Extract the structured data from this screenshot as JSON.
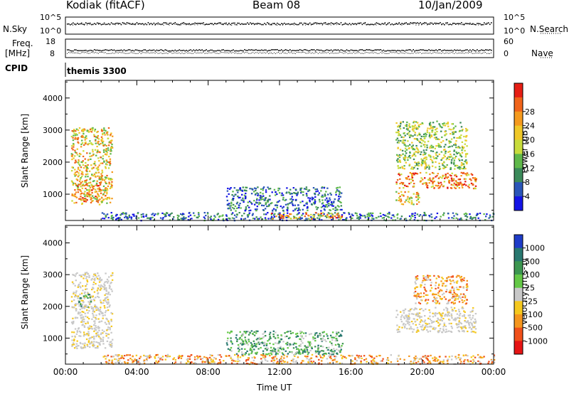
{
  "header": {
    "station": "Kodiak (fitACF)",
    "beam": "Beam 08",
    "date": "10/Jan/2009"
  },
  "noise_panel": {
    "left_label": "N.Sky",
    "right_label": "N.Search",
    "left_ticks": [
      "10^5",
      "10^0"
    ],
    "right_ticks": [
      "10^5",
      "10^0"
    ]
  },
  "freq_panel": {
    "left_label_top": "Freq.",
    "left_label_bottom": "[MHz]",
    "right_label": "Nave",
    "left_ticks": [
      "18",
      "8"
    ],
    "right_ticks": [
      "60",
      "0"
    ]
  },
  "cpid": {
    "label": "CPID",
    "program": "themis 3300"
  },
  "chart_data": [
    {
      "type": "heatmap",
      "name": "power",
      "ylabel": "Slant Range [km]",
      "ylim": [
        180,
        4550
      ],
      "xlim_hours": [
        0,
        24
      ],
      "y_ticks": [
        "1000",
        "2000",
        "3000",
        "4000"
      ],
      "colorbar": {
        "label": "Power [dB]",
        "ticks": [
          "4",
          "8",
          "12",
          "16",
          "20",
          "24",
          "28"
        ],
        "colors": [
          "#1414e6",
          "#2a55b8",
          "#3b8a5a",
          "#5fb84a",
          "#c8dc3c",
          "#f0c828",
          "#f59a1e",
          "#f0641a",
          "#e61e14"
        ]
      },
      "regions": [
        {
          "t": [
            0.3,
            2.6
          ],
          "r": [
            700,
            3100
          ],
          "level": "high"
        },
        {
          "t": [
            0.6,
            2.0
          ],
          "r": [
            800,
            1400
          ],
          "level": "peak"
        },
        {
          "t": [
            2.0,
            24.0
          ],
          "r": [
            200,
            450
          ],
          "level": "low"
        },
        {
          "t": [
            9.0,
            15.5
          ],
          "r": [
            500,
            1250
          ],
          "level": "low"
        },
        {
          "t": [
            11.5,
            15.5
          ],
          "r": [
            250,
            450
          ],
          "level": "peak"
        },
        {
          "t": [
            18.5,
            23.0
          ],
          "r": [
            1200,
            1700
          ],
          "level": "peak"
        },
        {
          "t": [
            18.5,
            22.5
          ],
          "r": [
            1800,
            3300
          ],
          "level": "mid"
        },
        {
          "t": [
            18.5,
            19.8
          ],
          "r": [
            700,
            1100
          ],
          "level": "high"
        }
      ]
    },
    {
      "type": "heatmap",
      "name": "velocity",
      "ylabel": "Slant Range [km]",
      "ylim": [
        180,
        4550
      ],
      "xlim_hours": [
        0,
        24
      ],
      "y_ticks": [
        "1000",
        "2000",
        "3000",
        "4000"
      ],
      "x_ticks": [
        "00:00",
        "04:00",
        "08:00",
        "12:00",
        "16:00",
        "20:00",
        "00:00"
      ],
      "xlabel": "Time UT",
      "colorbar": {
        "label": "Velocity [m s-1]",
        "ticks": [
          "1000",
          "500",
          "100",
          "25",
          "-25",
          "-100",
          "-500",
          "-1000"
        ],
        "colors": [
          "#1e3cc8",
          "#287870",
          "#3c9650",
          "#64c846",
          "#c8c8c8",
          "#f5c81e",
          "#f5961e",
          "#f0501a",
          "#e61414"
        ]
      },
      "regions": [
        {
          "t": [
            0.3,
            2.6
          ],
          "r": [
            700,
            3100
          ],
          "level": "ground"
        },
        {
          "t": [
            0.7,
            1.4
          ],
          "r": [
            2000,
            2400
          ],
          "level": "away"
        },
        {
          "t": [
            2.0,
            24.0
          ],
          "r": [
            200,
            500
          ],
          "level": "toward"
        },
        {
          "t": [
            9.0,
            15.5
          ],
          "r": [
            500,
            1250
          ],
          "level": "away"
        },
        {
          "t": [
            18.5,
            23.0
          ],
          "r": [
            1200,
            2000
          ],
          "level": "ground"
        },
        {
          "t": [
            19.5,
            22.5
          ],
          "r": [
            2100,
            3000
          ],
          "level": "toward"
        }
      ]
    }
  ]
}
